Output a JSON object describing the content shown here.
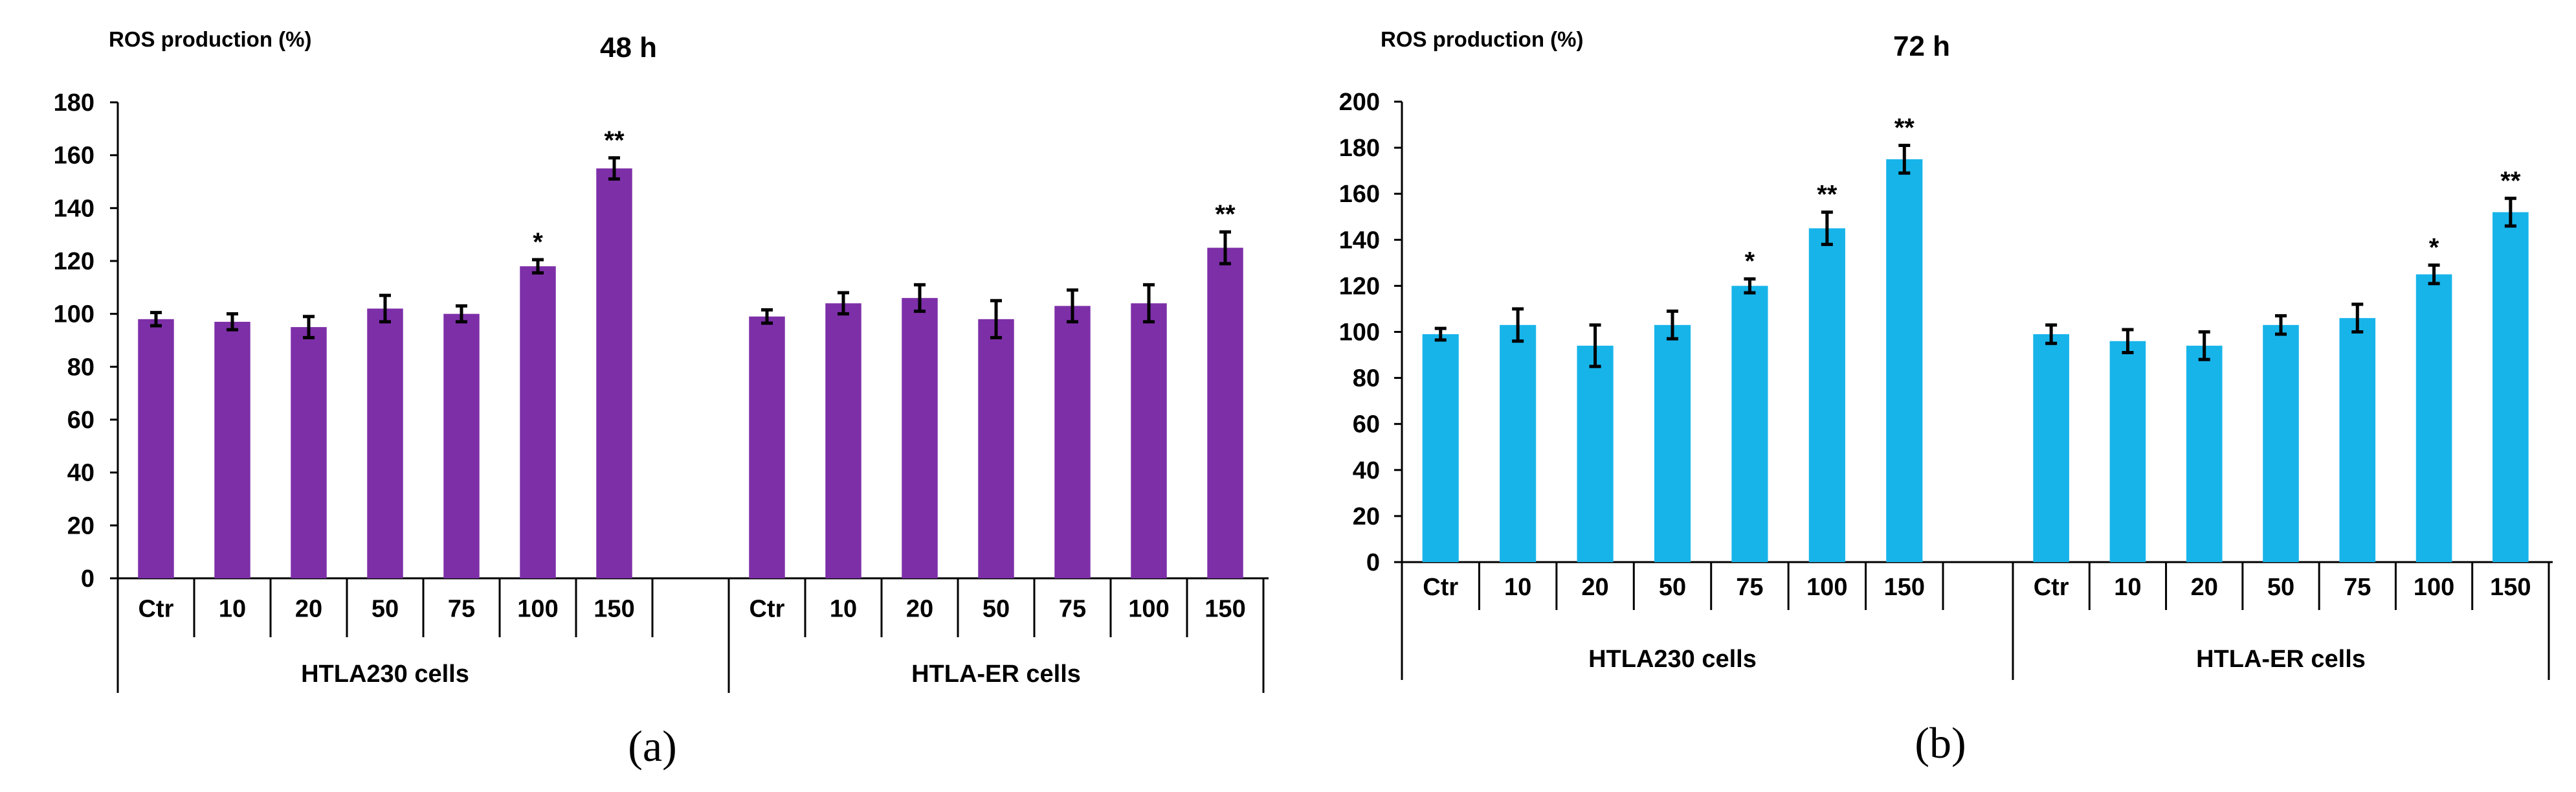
{
  "chart_data": [
    {
      "type": "bar",
      "panel_label": "(a)",
      "time_label": "48 h",
      "ylabel": "ROS production (%)",
      "ylim": [
        0,
        180
      ],
      "yticks": [
        0,
        20,
        40,
        60,
        80,
        100,
        120,
        140,
        160,
        180
      ],
      "color": "#7D2FA8",
      "groups": [
        {
          "name": "HTLA230 cells",
          "categories": [
            "Ctr",
            "10",
            "20",
            "50",
            "75",
            "100",
            "150"
          ],
          "values": [
            98,
            97,
            95,
            102,
            100,
            118,
            155
          ],
          "errors": [
            2.5,
            3,
            4,
            5,
            3,
            2.5,
            4
          ],
          "significance": [
            "",
            "",
            "",
            "",
            "",
            "*",
            "**"
          ]
        },
        {
          "name": "HTLA-ER cells",
          "categories": [
            "Ctr",
            "10",
            "20",
            "50",
            "75",
            "100",
            "150"
          ],
          "values": [
            99,
            104,
            106,
            98,
            103,
            104,
            125
          ],
          "errors": [
            2.5,
            4,
            5,
            7,
            6,
            7,
            6
          ],
          "significance": [
            "",
            "",
            "",
            "",
            "",
            "",
            "**"
          ]
        }
      ]
    },
    {
      "type": "bar",
      "panel_label": "(b)",
      "time_label": "72 h",
      "ylabel": "ROS production (%)",
      "ylim": [
        0,
        200
      ],
      "yticks": [
        0,
        20,
        40,
        60,
        80,
        100,
        120,
        140,
        160,
        180,
        200
      ],
      "color": "#17B4EA",
      "groups": [
        {
          "name": "HTLA230 cells",
          "categories": [
            "Ctr",
            "10",
            "20",
            "50",
            "75",
            "100",
            "150"
          ],
          "values": [
            99,
            103,
            94,
            103,
            120,
            145,
            175
          ],
          "errors": [
            2.5,
            7,
            9,
            6,
            3,
            7,
            6
          ],
          "significance": [
            "",
            "",
            "",
            "",
            "*",
            "**",
            "**"
          ]
        },
        {
          "name": "HTLA-ER cells",
          "categories": [
            "Ctr",
            "10",
            "20",
            "50",
            "75",
            "100",
            "150"
          ],
          "values": [
            99,
            96,
            94,
            103,
            106,
            125,
            152
          ],
          "errors": [
            4,
            5,
            6,
            4,
            6,
            4,
            6
          ],
          "significance": [
            "",
            "",
            "",
            "",
            "",
            "*",
            "**"
          ]
        }
      ]
    }
  ]
}
